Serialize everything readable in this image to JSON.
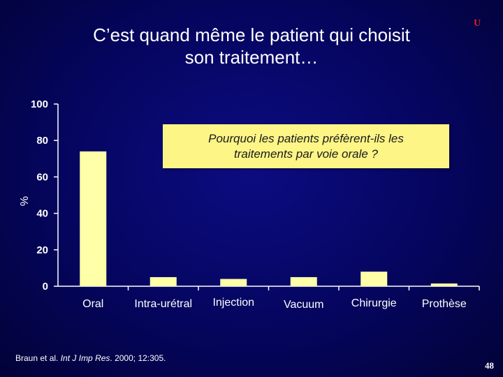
{
  "slide": {
    "title_line1": "C’est quand même le patient qui choisit",
    "title_line2": "son traitement…",
    "logo_mark": "U",
    "page_number": "48",
    "citation_prefix": "Braun et al. ",
    "citation_journal": "Int J Imp Res",
    "citation_suffix": ". 2000; 12:305."
  },
  "callout": {
    "line1": "Pourquoi les patients préfèrent-ils les",
    "line2": "traitements par voie orale ?"
  },
  "colors": {
    "background": "#05055e",
    "bar_fill": "#ffffa8",
    "axis": "#ffffff",
    "callout_fill": "#fdf586",
    "logo": "#e02020"
  },
  "chart_data": {
    "type": "bar",
    "title": "",
    "xlabel": "",
    "ylabel": "%",
    "ylim": [
      0,
      100
    ],
    "yticks": [
      0,
      20,
      40,
      60,
      80,
      100
    ],
    "categories": [
      "Oral",
      "Intra-urétral",
      "Injection",
      "Vacuum",
      "Chirurgie",
      "Prothèse"
    ],
    "values": [
      74,
      5,
      4,
      5,
      8,
      1.5
    ],
    "grid": false,
    "legend": "none"
  }
}
